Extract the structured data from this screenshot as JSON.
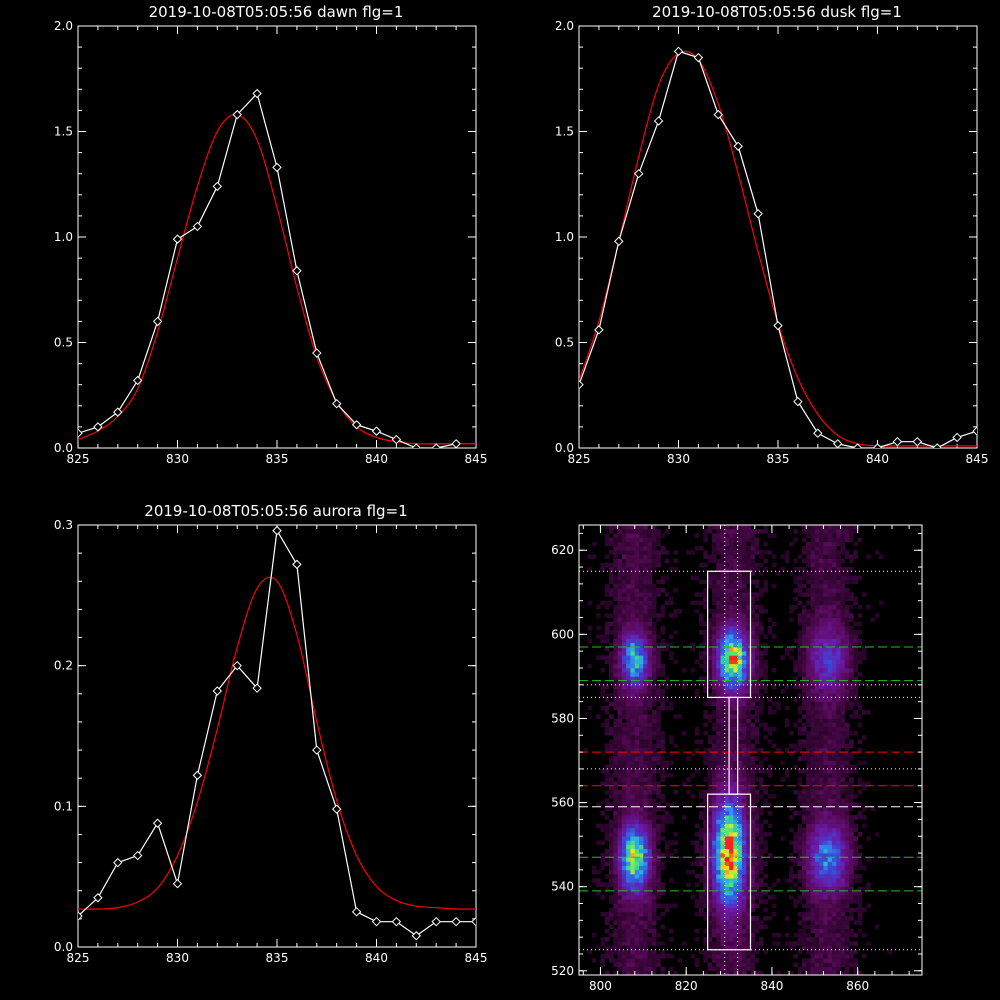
{
  "chart_data": [
    {
      "type": "line",
      "title": "2019-10-08T05:05:56 dawn flg=1",
      "xlim": [
        825,
        845
      ],
      "ylim": [
        0,
        2.0
      ],
      "xticks": [
        825,
        830,
        835,
        840,
        845
      ],
      "yticks": [
        0.0,
        0.5,
        1.0,
        1.5,
        2.0
      ],
      "xtick_labels": [
        "825",
        "830",
        "835",
        "840",
        "845"
      ],
      "ytick_labels": [
        "0.0",
        "0.5",
        "1.0",
        "1.5",
        "2.0"
      ],
      "series": [
        {
          "color": "#ffffff",
          "marker": "diamond",
          "x": [
            825,
            826,
            827,
            828,
            829,
            830,
            831,
            832,
            833,
            834,
            835,
            836,
            837,
            838,
            839,
            840,
            841,
            842,
            843,
            844
          ],
          "y": [
            0.07,
            0.1,
            0.17,
            0.32,
            0.6,
            0.99,
            1.05,
            1.24,
            1.58,
            1.68,
            1.33,
            0.84,
            0.45,
            0.21,
            0.11,
            0.08,
            0.04,
            0.0,
            0.0,
            0.02
          ]
        },
        {
          "color": "#ff0000",
          "marker": "none",
          "fit": "gauss",
          "x": [
            825,
            826,
            827,
            828,
            829,
            830,
            831,
            832,
            833,
            834,
            835,
            836,
            837,
            838,
            839,
            840,
            841,
            842,
            843,
            844,
            845
          ],
          "y": [
            0.04,
            0.08,
            0.15,
            0.28,
            0.55,
            0.9,
            1.24,
            1.5,
            1.58,
            1.46,
            1.14,
            0.76,
            0.43,
            0.22,
            0.1,
            0.05,
            0.03,
            0.02,
            0.02,
            0.02,
            0.02
          ]
        }
      ]
    },
    {
      "type": "line",
      "title": "2019-10-08T05:05:56 dusk flg=1",
      "xlim": [
        825,
        845
      ],
      "ylim": [
        0,
        2.0
      ],
      "xticks": [
        825,
        830,
        835,
        840,
        845
      ],
      "yticks": [
        0.0,
        0.5,
        1.0,
        1.5,
        2.0
      ],
      "xtick_labels": [
        "825",
        "830",
        "835",
        "840",
        "845"
      ],
      "ytick_labels": [
        "0.0",
        "0.5",
        "1.0",
        "1.5",
        "2.0"
      ],
      "series": [
        {
          "color": "#ffffff",
          "marker": "diamond",
          "x": [
            825,
            826,
            827,
            828,
            829,
            830,
            831,
            832,
            833,
            834,
            835,
            836,
            837,
            838,
            839,
            840,
            841,
            842,
            843,
            844,
            845
          ],
          "y": [
            0.3,
            0.56,
            0.98,
            1.3,
            1.55,
            1.88,
            1.85,
            1.58,
            1.43,
            1.11,
            0.58,
            0.22,
            0.07,
            0.02,
            0.0,
            0.0,
            0.03,
            0.03,
            0.0,
            0.05,
            0.08
          ]
        },
        {
          "color": "#ff0000",
          "marker": "none",
          "fit": "gauss",
          "x": [
            825,
            826,
            827,
            828,
            829,
            830,
            831,
            832,
            833,
            834,
            835,
            836,
            837,
            838,
            839,
            840,
            841,
            842,
            843,
            844,
            845
          ],
          "y": [
            0.32,
            0.6,
            0.98,
            1.38,
            1.72,
            1.87,
            1.84,
            1.63,
            1.3,
            0.93,
            0.59,
            0.33,
            0.16,
            0.06,
            0.02,
            0.01,
            0.01,
            0.01,
            0.01,
            0.01,
            0.01
          ]
        }
      ]
    },
    {
      "type": "line",
      "title": "2019-10-08T05:05:56 aurora flg=1",
      "xlim": [
        825,
        845
      ],
      "ylim": [
        0,
        0.3
      ],
      "xticks": [
        825,
        830,
        835,
        840,
        845
      ],
      "yticks": [
        0.0,
        0.1,
        0.2,
        0.3
      ],
      "xtick_labels": [
        "825",
        "830",
        "835",
        "840",
        "845"
      ],
      "ytick_labels": [
        "0.0",
        "0.1",
        "0.2",
        "0.3"
      ],
      "series": [
        {
          "color": "#ffffff",
          "marker": "diamond",
          "x": [
            825,
            826,
            827,
            828,
            829,
            830,
            831,
            832,
            833,
            834,
            835,
            836,
            837,
            838,
            839,
            840,
            841,
            842,
            843,
            844,
            845
          ],
          "y": [
            0.022,
            0.035,
            0.06,
            0.065,
            0.088,
            0.045,
            0.122,
            0.182,
            0.2,
            0.184,
            0.296,
            0.272,
            0.14,
            0.098,
            0.025,
            0.018,
            0.018,
            0.008,
            0.018,
            0.018,
            0.018
          ]
        },
        {
          "color": "#ff0000",
          "marker": "none",
          "fit": "gauss",
          "x": [
            825,
            826,
            827,
            828,
            829,
            830,
            831,
            832,
            833,
            834,
            835,
            836,
            837,
            838,
            839,
            840,
            841,
            842,
            843,
            844,
            845
          ],
          "y": [
            0.027,
            0.027,
            0.028,
            0.032,
            0.042,
            0.065,
            0.103,
            0.155,
            0.213,
            0.255,
            0.26,
            0.222,
            0.16,
            0.104,
            0.065,
            0.043,
            0.033,
            0.029,
            0.028,
            0.027,
            0.027
          ]
        }
      ]
    },
    {
      "type": "heatmap",
      "xlim": [
        795,
        875
      ],
      "ylim": [
        519,
        626
      ],
      "xticks": [
        800,
        820,
        840,
        860
      ],
      "yticks": [
        520,
        540,
        560,
        580,
        600,
        620
      ],
      "xtick_labels": [
        "800",
        "820",
        "840",
        "860"
      ],
      "ytick_labels": [
        "520",
        "540",
        "560",
        "580",
        "600",
        "620"
      ],
      "colormap": [
        "#000000",
        "#5a0a5a",
        "#6a1aa8",
        "#3a4ad8",
        "#2aa4f0",
        "#40e080",
        "#e8f020",
        "#ff2020"
      ],
      "blobs": [
        {
          "x": 808,
          "y": 594,
          "sx": 2.0,
          "sy": 4.0,
          "amp": 0.55
        },
        {
          "x": 831,
          "y": 594,
          "sx": 2.4,
          "sy": 4.5,
          "amp": 0.78
        },
        {
          "x": 853,
          "y": 594,
          "sx": 3.0,
          "sy": 5.0,
          "amp": 0.28
        },
        {
          "x": 808,
          "y": 547,
          "sx": 2.2,
          "sy": 5.0,
          "amp": 0.72
        },
        {
          "x": 830,
          "y": 548,
          "sx": 2.4,
          "sy": 8.0,
          "amp": 0.9
        },
        {
          "x": 853,
          "y": 547,
          "sx": 3.0,
          "sy": 5.0,
          "amp": 0.42
        }
      ],
      "peak": {
        "x": 829,
        "y": 546
      },
      "boxes": [
        {
          "x": [
            825,
            835
          ],
          "y": [
            525,
            562
          ]
        },
        {
          "x": [
            825,
            835
          ],
          "y": [
            585,
            615
          ]
        },
        {
          "x": [
            830,
            832
          ],
          "y": [
            562,
            585
          ]
        }
      ],
      "hlines": [
        {
          "y": 615,
          "color": "#ffffff",
          "style": "dotted"
        },
        {
          "y": 597,
          "color": "#20c020",
          "style": "dashed"
        },
        {
          "y": 589,
          "color": "#20c020",
          "style": "dashed"
        },
        {
          "y": 588,
          "color": "#ffffff",
          "style": "dotted"
        },
        {
          "y": 585,
          "color": "#ffffff",
          "style": "dotted"
        },
        {
          "y": 572,
          "color": "#ff0000",
          "style": "dashed"
        },
        {
          "y": 568,
          "color": "#ffffff",
          "style": "dotted"
        },
        {
          "y": 564,
          "color": "#ff0000",
          "style": "dashed"
        },
        {
          "y": 559,
          "color": "#ffffff",
          "style": "dashed"
        },
        {
          "y": 547,
          "color": "#20c020",
          "style": "dashed"
        },
        {
          "y": 539,
          "color": "#20c020",
          "style": "dashed"
        },
        {
          "y": 525,
          "color": "#ffffff",
          "style": "dotted"
        }
      ],
      "vlines": [
        {
          "x": 829,
          "color": "#ffffff",
          "style": "dotted"
        },
        {
          "x": 832,
          "color": "#ffffff",
          "style": "dotted"
        }
      ]
    }
  ]
}
